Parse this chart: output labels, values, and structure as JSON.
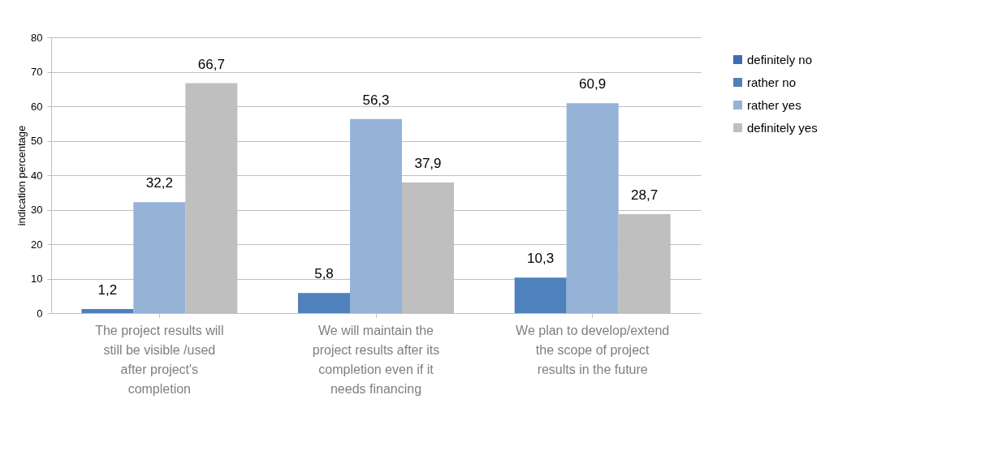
{
  "chart_data": {
    "type": "bar",
    "ylabel": "indication percentage",
    "categories": [
      "The project results will still be visible /used after project's completion",
      "We will maintain the project results after its completion even if it needs financing",
      "We plan to develop/extend the scope of project results in the future"
    ],
    "series": [
      {
        "name": "definitely no",
        "color": "#3d6db2",
        "values": [
          null,
          null,
          null
        ]
      },
      {
        "name": "rather no",
        "color": "#4f81bd",
        "values": [
          1.2,
          5.8,
          10.3
        ],
        "value_labels": [
          "1,2",
          "5,8",
          "10,3"
        ]
      },
      {
        "name": "rather yes",
        "color": "#95b3d7",
        "values": [
          32.2,
          56.3,
          60.9
        ],
        "value_labels": [
          "32,2",
          "56,3",
          "60,9"
        ]
      },
      {
        "name": "definitely yes",
        "color": "#bfbfbf",
        "values": [
          66.7,
          37.9,
          28.7
        ],
        "value_labels": [
          "66,7",
          "37,9",
          "28,7"
        ]
      }
    ],
    "ylim": [
      0,
      80
    ],
    "yticks": [
      0,
      10,
      20,
      30,
      40,
      50,
      60,
      70,
      80
    ],
    "grid": "y",
    "legend": "right"
  }
}
